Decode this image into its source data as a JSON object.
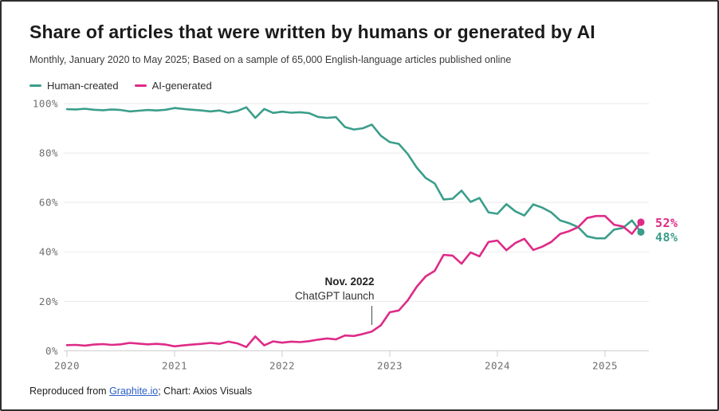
{
  "header": {
    "title": "Share of articles that were written by humans or generated by AI",
    "subtitle": "Monthly, January 2020 to May 2025; Based on a sample of 65,000 English-language articles published online"
  },
  "legend": {
    "items": [
      {
        "label": "Human-created",
        "color": "#3b9e8b"
      },
      {
        "label": "AI-generated",
        "color": "#de2b87"
      }
    ]
  },
  "footer": {
    "prefix": "Reproduced from ",
    "link_text": "Graphite.io",
    "suffix": "; Chart: Axios Visuals",
    "link_color": "#2b5ec6"
  },
  "chart_data": {
    "type": "line",
    "title": "Share of articles that were written by humans or generated by AI",
    "subtitle": "Monthly, January 2020 to May 2025; Based on a sample of 65,000 English-language articles published online",
    "x_unit": "month",
    "x_start": "2020-01",
    "x_end": "2025-05",
    "x_tick_labels": [
      "2020",
      "2021",
      "2022",
      "2023",
      "2024",
      "2025"
    ],
    "y_tick_labels": [
      "0%",
      "20%",
      "40%",
      "60%",
      "80%",
      "100%"
    ],
    "ylim": [
      0,
      100
    ],
    "grid": "horizontal",
    "legend_position": "top-left",
    "series": [
      {
        "name": "Human-created",
        "color": "#3b9e8b",
        "values": [
          97.7,
          97.6,
          97.9,
          97.5,
          97.3,
          97.6,
          97.4,
          96.8,
          97.1,
          97.4,
          97.2,
          97.5,
          98.2,
          97.8,
          97.5,
          97.2,
          96.8,
          97.2,
          96.3,
          97.0,
          98.5,
          94.2,
          97.8,
          96.2,
          96.7,
          96.3,
          96.5,
          96.1,
          94.6,
          94.2,
          94.5,
          90.5,
          89.5,
          90.0,
          91.5,
          87.0,
          84.4,
          83.7,
          79.6,
          74.1,
          69.9,
          67.7,
          61.2,
          61.5,
          64.8,
          60.2,
          61.8,
          56.0,
          55.4,
          59.3,
          56.4,
          54.7,
          59.2,
          57.9,
          56.0,
          52.7,
          51.6,
          50.0,
          46.3,
          45.5,
          45.5,
          49.0,
          49.7,
          52.7,
          48.0
        ]
      },
      {
        "name": "AI-generated",
        "color": "#de2b87",
        "values": [
          2.3,
          2.4,
          2.1,
          2.5,
          2.7,
          2.4,
          2.6,
          3.2,
          2.9,
          2.6,
          2.8,
          2.5,
          1.8,
          2.2,
          2.5,
          2.8,
          3.2,
          2.8,
          3.7,
          3.0,
          1.5,
          5.8,
          2.2,
          3.8,
          3.3,
          3.7,
          3.5,
          3.9,
          4.5,
          5.0,
          4.6,
          6.2,
          6.0,
          6.8,
          7.8,
          10.3,
          15.6,
          16.3,
          20.4,
          25.9,
          30.1,
          32.3,
          38.8,
          38.5,
          35.2,
          39.8,
          38.2,
          44.0,
          44.6,
          40.7,
          43.6,
          45.3,
          40.8,
          42.1,
          44.0,
          47.3,
          48.4,
          50.0,
          53.7,
          54.5,
          54.5,
          51.0,
          50.3,
          47.3,
          52.0
        ]
      }
    ],
    "end_labels": [
      {
        "text": "52%",
        "series": "AI-generated",
        "color": "#de2b87"
      },
      {
        "text": "48%",
        "series": "Human-created",
        "color": "#3b9e8b"
      }
    ],
    "annotation": {
      "line1": "Nov. 2022",
      "line2": "ChatGPT launch",
      "x": "2022-11",
      "month_index": 34
    }
  }
}
